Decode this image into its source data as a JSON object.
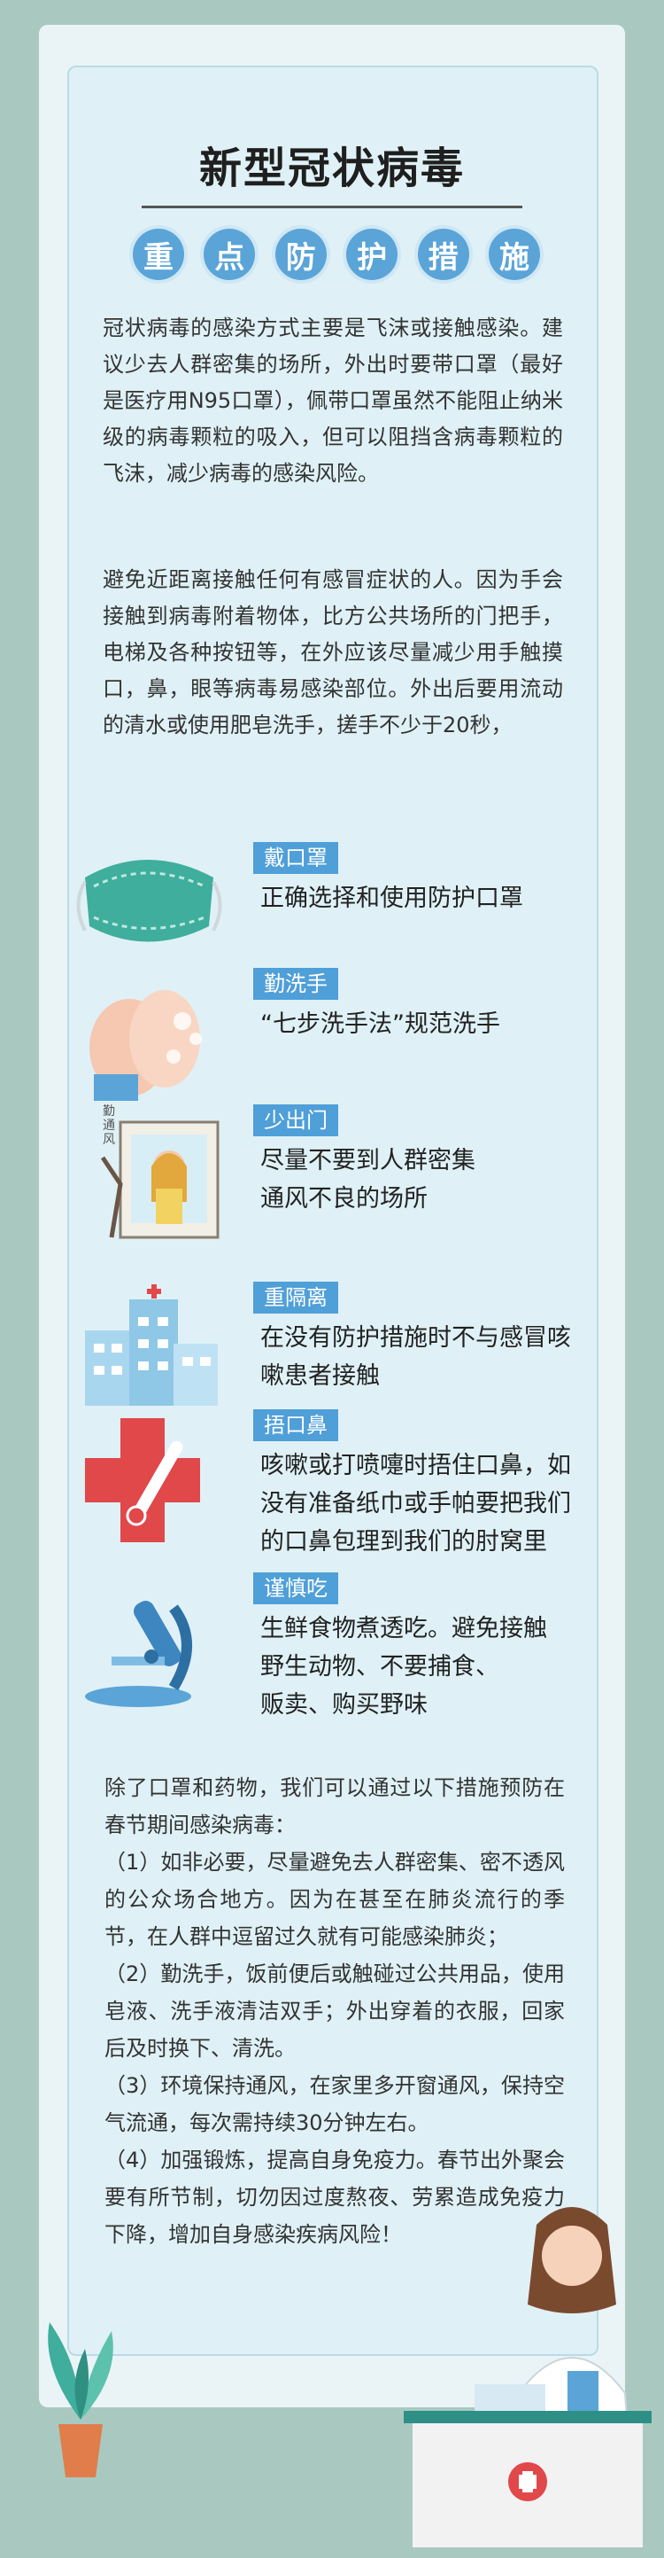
{
  "header": {
    "title": "新型冠状病毒",
    "subtitle_chars": [
      "重",
      "点",
      "防",
      "护",
      "措",
      "施"
    ]
  },
  "intro": {
    "paragraph1": "冠状病毒的感染方式主要是飞沫或接触感染。建议少去人群密集的场所，外出时要带口罩（最好是医疗用N95口罩），佩带口罩虽然不能阻止纳米级的病毒颗粒的吸入，但可以阻挡含病毒颗粒的飞沫，减少病毒的感染风险。",
    "paragraph2": "避免近距离接触任何有感冒症状的人。因为手会接触到病毒附着物体，比方公共场所的门把手，电梯及各种按钮等，在外应该尽量减少用手触摸口，鼻，眼等病毒易感染部位。外出后要用流动的清水或使用肥皂洗手，搓手不少于20秒，"
  },
  "measures": [
    {
      "tag": "戴口罩",
      "desc": "正确选择和使用防护口罩",
      "icon": "mask-icon"
    },
    {
      "tag": "勤洗手",
      "desc": "“七步洗手法”规范洗手",
      "icon": "washing-hands-icon"
    },
    {
      "tag": "少出门",
      "desc": "尽量不要到人群密集\n通风不良的场所",
      "icon": "window-girl-icon",
      "art_text": "勤通风"
    },
    {
      "tag": "重隔离",
      "desc": "在没有防护措施时不与感冒咳嗽患者接触",
      "icon": "hospital-building-icon"
    },
    {
      "tag": "捂口鼻",
      "desc": "咳嗽或打喷嚏时捂住口鼻，如没有准备纸巾或手帕要把我们的口鼻包理到我们的肘窝里",
      "icon": "red-cross-thermometer-icon"
    },
    {
      "tag": "谨慎吃",
      "desc": "生鲜食物煮透吃。避免接触\n野生动物、不要捕食、\n贩卖、购买野味",
      "icon": "microscope-icon"
    }
  ],
  "tips": {
    "intro": "除了口罩和药物，我们可以通过以下措施预防在春节期间感染病毒：",
    "items": [
      "（1）如非必要，尽量避免去人群密集、密不透风的公众场合地方。因为在甚至在肺炎流行的季节，在人群中逗留过久就有可能感染肺炎；",
      "（2）勤洗手，饭前便后或触碰过公共用品，使用皂液、洗手液清洁双手；外出穿着的衣服，回家后及时换下、清洗。",
      "（3）环境保持通风，在家里多开窗通风，保持空气流通，每次需持续30分钟左右。",
      "（4）加强锻炼，提高自身免疫力。春节出外聚会要有所节制，切勿因过度熬夜、劳累造成免疫力下降，增加自身感染疾病风险！"
    ]
  },
  "colors": {
    "background": "#a9c9c0",
    "panel": "#dff1f6",
    "accent_blue": "#4f9fd8",
    "red_cross": "#e0484a"
  }
}
